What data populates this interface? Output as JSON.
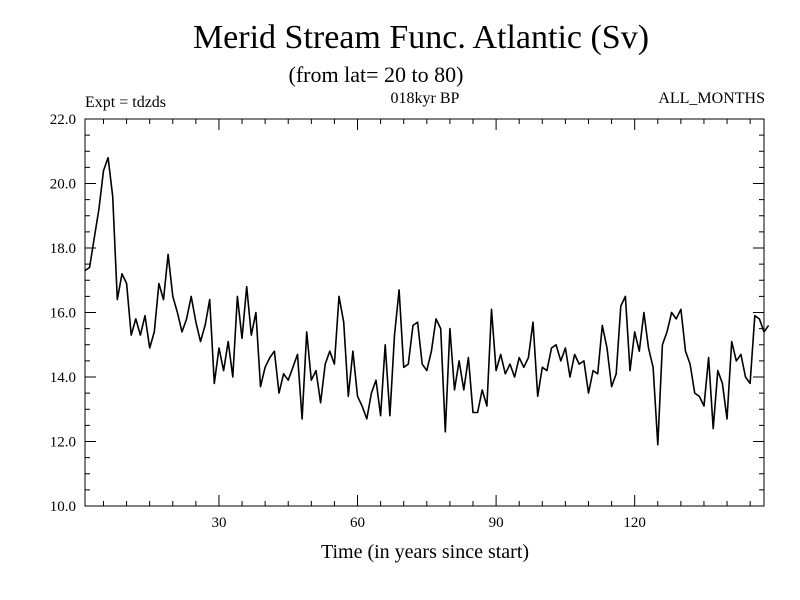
{
  "chart_data": {
    "type": "line",
    "title": "Merid Stream Func. Atlantic (Sv)",
    "subtitle": "(from lat= 20 to 80)",
    "experiment_label": "Expt = tdzds",
    "period_label": "018kyr BP",
    "months_label": "ALL_MONTHS",
    "xlabel": "Time (in years since start)",
    "ylabel": "",
    "xlim": [
      1,
      148
    ],
    "ylim": [
      10.0,
      22.0
    ],
    "x_ticks": [
      30,
      60,
      90,
      120
    ],
    "y_ticks": [
      10.0,
      12.0,
      14.0,
      16.0,
      18.0,
      20.0,
      22.0
    ],
    "x_tick_labels": [
      "30",
      "60",
      "90",
      "120"
    ],
    "y_tick_labels": [
      "10.0",
      "12.0",
      "14.0",
      "16.0",
      "18.0",
      "20.0",
      "22.0"
    ],
    "grid": false,
    "series": [
      {
        "name": "Merid Stream Func. Atlantic",
        "color": "#000000",
        "x_start": 1,
        "x_step": 1,
        "values": [
          17.3,
          17.4,
          18.3,
          19.2,
          20.4,
          20.8,
          19.6,
          16.4,
          17.2,
          16.9,
          15.3,
          15.8,
          15.3,
          15.9,
          14.9,
          15.4,
          16.9,
          16.4,
          17.8,
          16.5,
          16.0,
          15.4,
          15.8,
          16.5,
          15.7,
          15.1,
          15.6,
          16.4,
          13.8,
          14.9,
          14.2,
          15.1,
          14.0,
          16.5,
          15.2,
          16.8,
          15.3,
          16.0,
          13.7,
          14.3,
          14.6,
          14.8,
          13.5,
          14.1,
          13.9,
          14.3,
          14.7,
          12.7,
          15.4,
          13.9,
          14.2,
          13.2,
          14.4,
          14.8,
          14.4,
          16.5,
          15.7,
          13.4,
          14.8,
          13.4,
          13.1,
          12.7,
          13.5,
          13.9,
          12.8,
          15.0,
          12.8,
          15.3,
          16.7,
          14.3,
          14.4,
          15.6,
          15.7,
          14.4,
          14.2,
          14.8,
          15.8,
          15.5,
          12.3,
          15.5,
          13.6,
          14.5,
          13.6,
          14.6,
          12.9,
          12.9,
          13.6,
          13.1,
          16.1,
          14.2,
          14.7,
          14.1,
          14.4,
          14.0,
          14.6,
          14.3,
          14.6,
          15.7,
          13.4,
          14.3,
          14.2,
          14.9,
          15.0,
          14.5,
          14.9,
          14.0,
          14.7,
          14.4,
          14.5,
          13.5,
          14.2,
          14.1,
          15.6,
          14.9,
          13.7,
          14.1,
          16.2,
          16.5,
          14.2,
          15.4,
          14.8,
          16.0,
          14.9,
          14.3,
          11.9,
          15.0,
          15.4,
          16.0,
          15.8,
          16.1,
          14.8,
          14.4,
          13.5,
          13.4,
          13.1,
          14.6,
          12.4,
          14.2,
          13.8,
          12.7,
          15.1,
          14.5,
          14.7,
          14.0,
          13.8,
          15.9,
          15.8,
          15.4,
          15.6
        ]
      }
    ]
  }
}
